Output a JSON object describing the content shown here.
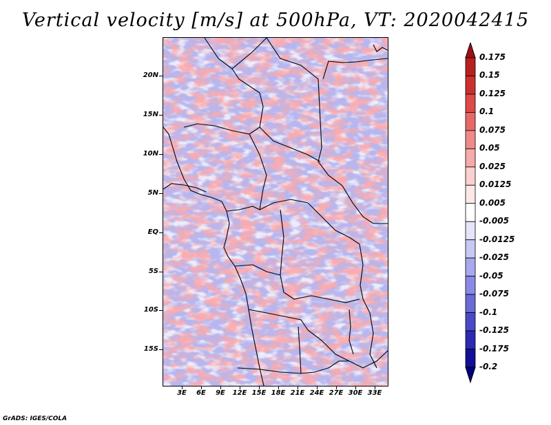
{
  "title": "Vertical velocity [m/s] at 500hPa, VT: 2020042415",
  "credit": "GrADS: IGES/COLA",
  "map": {
    "lat_labels": [
      "20N",
      "15N",
      "10N",
      "5N",
      "EQ",
      "5S",
      "10S",
      "15S"
    ],
    "lon_labels": [
      "3E",
      "6E",
      "9E",
      "12E",
      "15E",
      "18E",
      "21E",
      "24E",
      "27E",
      "30E",
      "33E"
    ]
  },
  "colorbar": {
    "labels": [
      "0.175",
      "0.15",
      "0.125",
      "0.1",
      "0.075",
      "0.05",
      "0.025",
      "0.0125",
      "0.005",
      "-0.005",
      "-0.0125",
      "-0.025",
      "-0.05",
      "-0.075",
      "-0.1",
      "-0.125",
      "-0.175",
      "-0.2"
    ],
    "colors": [
      "#a01010",
      "#b82020",
      "#cc3030",
      "#dc4a4a",
      "#e86868",
      "#f08a8a",
      "#f6aaaa",
      "#fbd0d0",
      "#fde8e8",
      "#ffffff",
      "#e4e4fb",
      "#c8c8f5",
      "#a8a8ee",
      "#8a8ae6",
      "#6a6ad8",
      "#4a4ac8",
      "#2a2ab4",
      "#10109a",
      "#000080"
    ]
  }
}
